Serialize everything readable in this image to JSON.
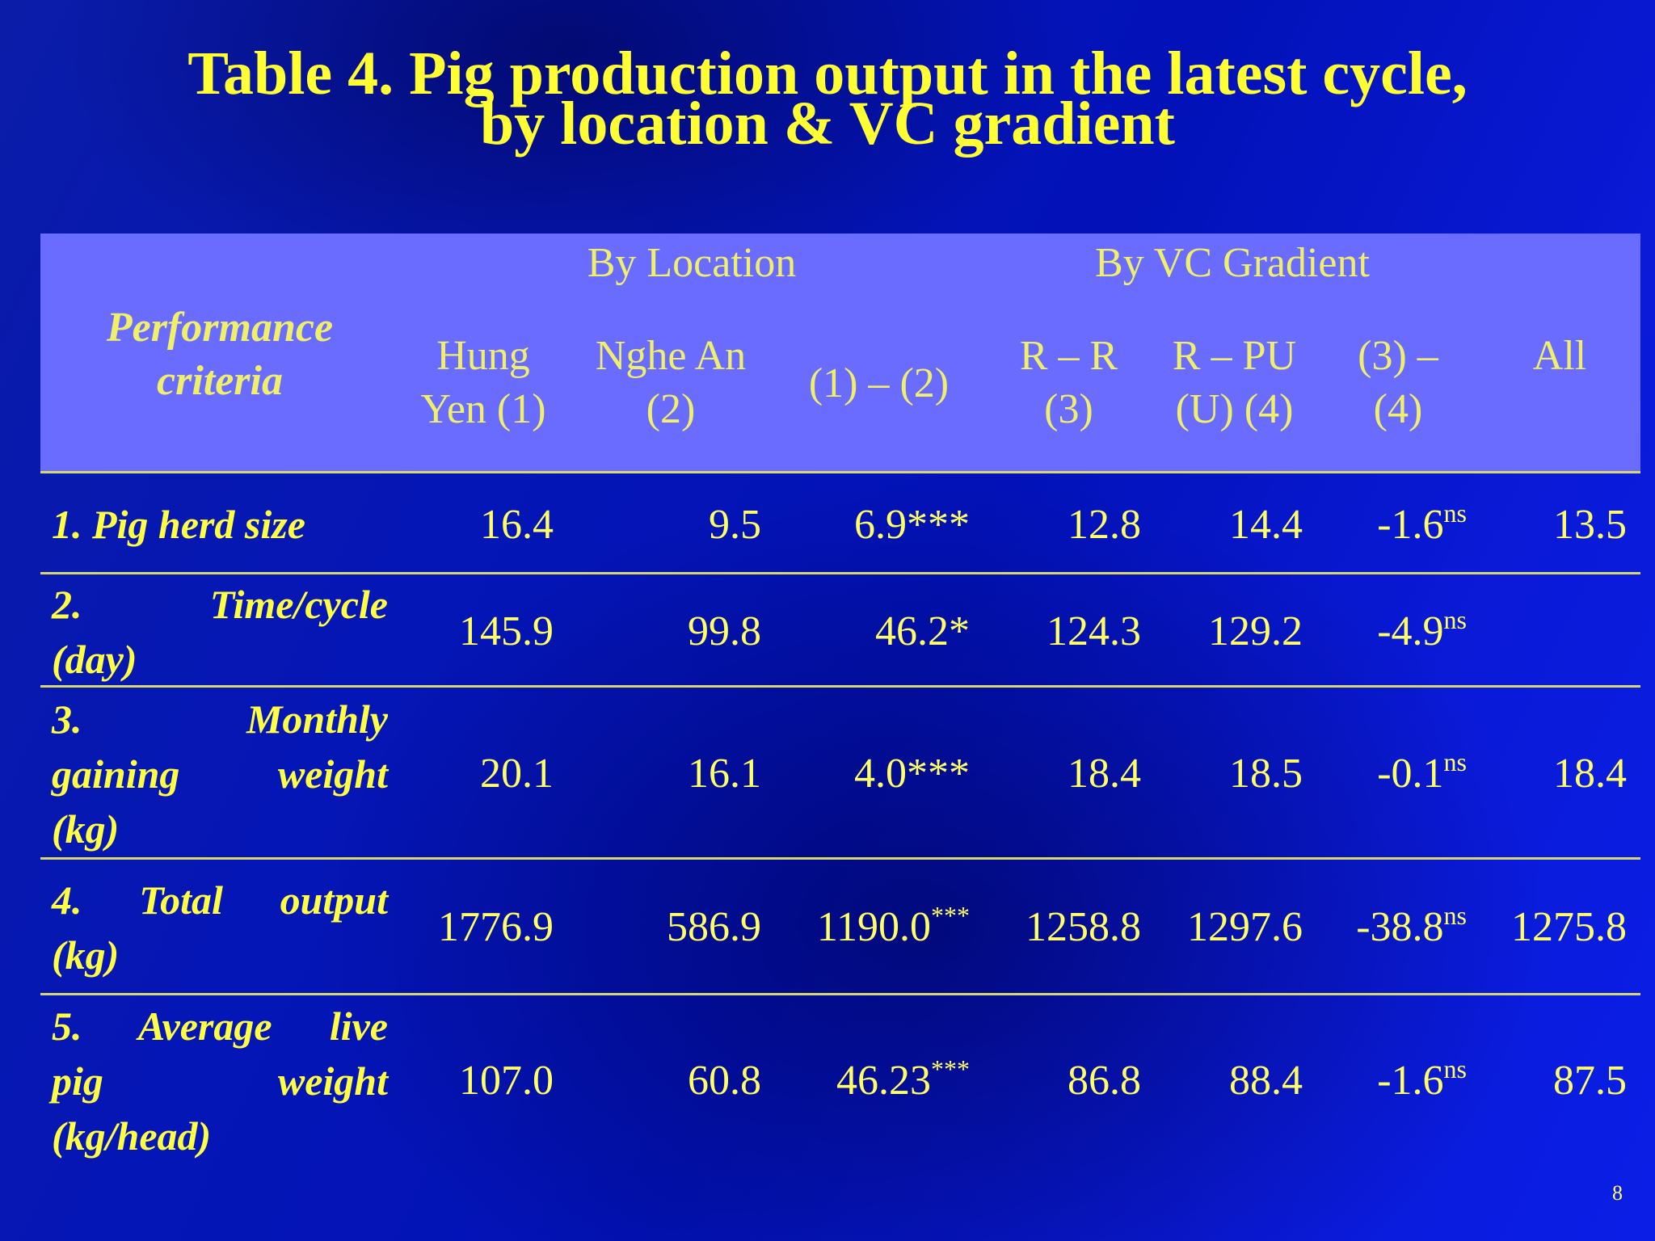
{
  "title": {
    "line1": "Table 4. Pig production output in the latest cycle,",
    "line2": "by location & VC gradient"
  },
  "header": {
    "criteria_line1": "Performance",
    "criteria_line2": "criteria",
    "group_location": "By Location",
    "group_vc": "By VC Gradient",
    "col_hungyen_1": "Hung",
    "col_hungyen_2": "Yen (1)",
    "col_nghean_1": "Nghe An",
    "col_nghean_2": "(2)",
    "col_diff12": "(1) – (2)",
    "col_rr_1": "R – R",
    "col_rr_2": "(3)",
    "col_rpu_1": "R – PU",
    "col_rpu_2": "(U) (4)",
    "col_diff34_1": "(3) –",
    "col_diff34_2": "(4)",
    "col_all": "All"
  },
  "rows": [
    {
      "label_line1": "1. Pig herd size",
      "hungyen": "16.4",
      "nghean": "9.5",
      "diff12": "6.9***",
      "diff12_sup": "",
      "rr": "12.8",
      "rpu": "14.4",
      "diff34": "-1.6",
      "diff34_sup": "ns",
      "all": "13.5"
    },
    {
      "label_line1": "2. Time/cycle",
      "label_line2": "(day)",
      "hungyen": "145.9",
      "nghean": "99.8",
      "diff12": "46.2*",
      "diff12_sup": "",
      "rr": "124.3",
      "rpu": "129.2",
      "diff34": "-4.9",
      "diff34_sup": "ns",
      "all": ""
    },
    {
      "label_line1": "3. Monthly",
      "label_line2": "gaining weight",
      "label_line3": "(kg)",
      "hungyen": "20.1",
      "nghean": "16.1",
      "diff12": "4.0***",
      "diff12_sup": "",
      "rr": "18.4",
      "rpu": "18.5",
      "diff34": "-0.1",
      "diff34_sup": "ns",
      "all": "18.4"
    },
    {
      "label_line1": "4. Total output",
      "label_line2": "(kg)",
      "hungyen": "1776.9",
      "nghean": "586.9",
      "diff12": "1190.0",
      "diff12_sup": "***",
      "rr": "1258.8",
      "rpu": "1297.6",
      "diff34": "-38.8",
      "diff34_sup": "ns",
      "all": "1275.8"
    },
    {
      "label_line1": "5. Average live",
      "label_line2": "pig weight",
      "label_line3": "(kg/head)",
      "hungyen": "107.0",
      "nghean": "60.8",
      "diff12": "46.23",
      "diff12_sup": "***",
      "rr": "86.8",
      "rpu": "88.4",
      "diff34": "-1.6",
      "diff34_sup": "ns",
      "all": "87.5"
    }
  ],
  "page_number": "8",
  "colors": {
    "background": "#0516b6",
    "header_panel": "#6a6cff",
    "text": "#ffff33",
    "rule": "#d8d870"
  }
}
